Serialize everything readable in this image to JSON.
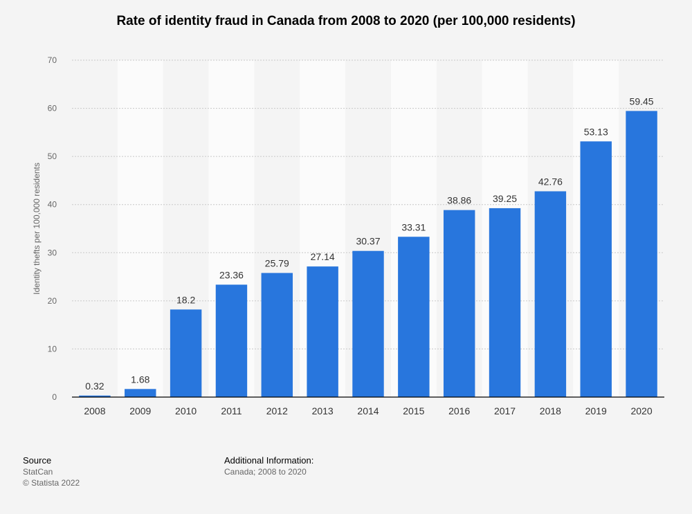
{
  "chart_data": {
    "type": "bar",
    "title": "Rate of identity fraud in Canada from 2008 to 2020 (per 100,000 residents)",
    "xlabel": "",
    "ylabel": "Identity thefts per 100,000 residents",
    "categories": [
      "2008",
      "2009",
      "2010",
      "2011",
      "2012",
      "2013",
      "2014",
      "2015",
      "2016",
      "2017",
      "2018",
      "2019",
      "2020"
    ],
    "values": [
      0.32,
      1.68,
      18.2,
      23.36,
      25.79,
      27.14,
      30.37,
      33.31,
      38.86,
      39.25,
      42.76,
      53.13,
      59.45
    ],
    "value_labels": [
      "0.32",
      "1.68",
      "18.2",
      "23.36",
      "25.79",
      "27.14",
      "30.37",
      "33.31",
      "38.86",
      "39.25",
      "42.76",
      "53.13",
      "59.45"
    ],
    "ylim": [
      0,
      70
    ],
    "yticks": [
      0,
      10,
      20,
      30,
      40,
      50,
      60,
      70
    ],
    "grid": true,
    "bar_color": "#2876dd"
  },
  "footer": {
    "source_heading": "Source",
    "source_lines": [
      "StatCan",
      "© Statista 2022"
    ],
    "info_heading": "Additional Information:",
    "info_text": "Canada; 2008 to 2020"
  }
}
